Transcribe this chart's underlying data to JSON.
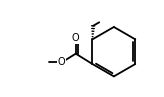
{
  "bg_color": "#ffffff",
  "line_color": "#000000",
  "lw": 1.3,
  "figsize": [
    1.64,
    0.97
  ],
  "dpi": 100,
  "xlim": [
    0.0,
    10.0
  ],
  "ylim": [
    0.5,
    6.5
  ]
}
